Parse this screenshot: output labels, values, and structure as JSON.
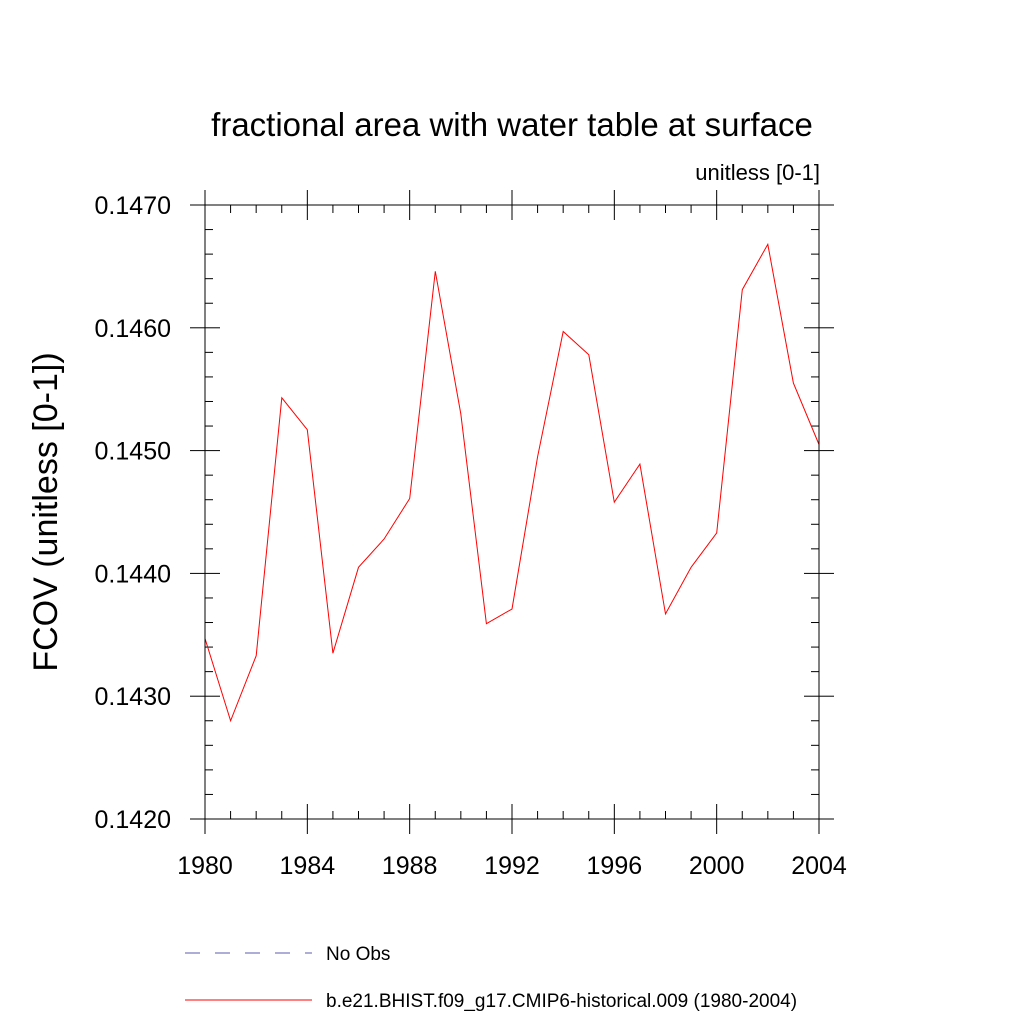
{
  "chart_data": {
    "type": "line",
    "title": "fractional area with water table at surface",
    "units_label": "unitless [0-1]",
    "xlabel": "",
    "ylabel": "FCOV  (unitless [0-1])",
    "xlim": [
      1980,
      2004
    ],
    "ylim": [
      0.142,
      0.147
    ],
    "x_ticks": [
      1980,
      1984,
      1988,
      1992,
      1996,
      2000,
      2004
    ],
    "x_tick_labels": [
      "1980",
      "1984",
      "1988",
      "1992",
      "1996",
      "2000",
      "2004"
    ],
    "y_ticks": [
      0.142,
      0.143,
      0.144,
      0.145,
      0.146,
      0.147
    ],
    "y_tick_labels": [
      "0.1420",
      "0.1430",
      "0.1440",
      "0.1450",
      "0.1460",
      "0.1470"
    ],
    "x": [
      1980,
      1981,
      1982,
      1983,
      1984,
      1985,
      1986,
      1987,
      1988,
      1989,
      1990,
      1991,
      1992,
      1993,
      1994,
      1995,
      1996,
      1997,
      1998,
      1999,
      2000,
      2001,
      2002,
      2003,
      2004
    ],
    "series": [
      {
        "name": "b.e21.BHIST.f09_g17.CMIP6-historical.009 (1980-2004)",
        "color": "#ff0000",
        "values": [
          0.14347,
          0.1428,
          0.14333,
          0.14543,
          0.14517,
          0.14335,
          0.14405,
          0.14428,
          0.14461,
          0.14646,
          0.1453,
          0.14359,
          0.14371,
          0.14495,
          0.14597,
          0.14578,
          0.14458,
          0.14489,
          0.14367,
          0.14405,
          0.14433,
          0.14631,
          0.14668,
          0.14555,
          0.14505
        ]
      }
    ],
    "legend": [
      {
        "label": "No Obs",
        "style": "dashed",
        "color": "#5b5bb0"
      },
      {
        "label": "b.e21.BHIST.f09_g17.CMIP6-historical.009 (1980-2004)",
        "style": "solid",
        "color": "#ff0000"
      }
    ],
    "legend_placement": "bottom",
    "grid": false
  }
}
